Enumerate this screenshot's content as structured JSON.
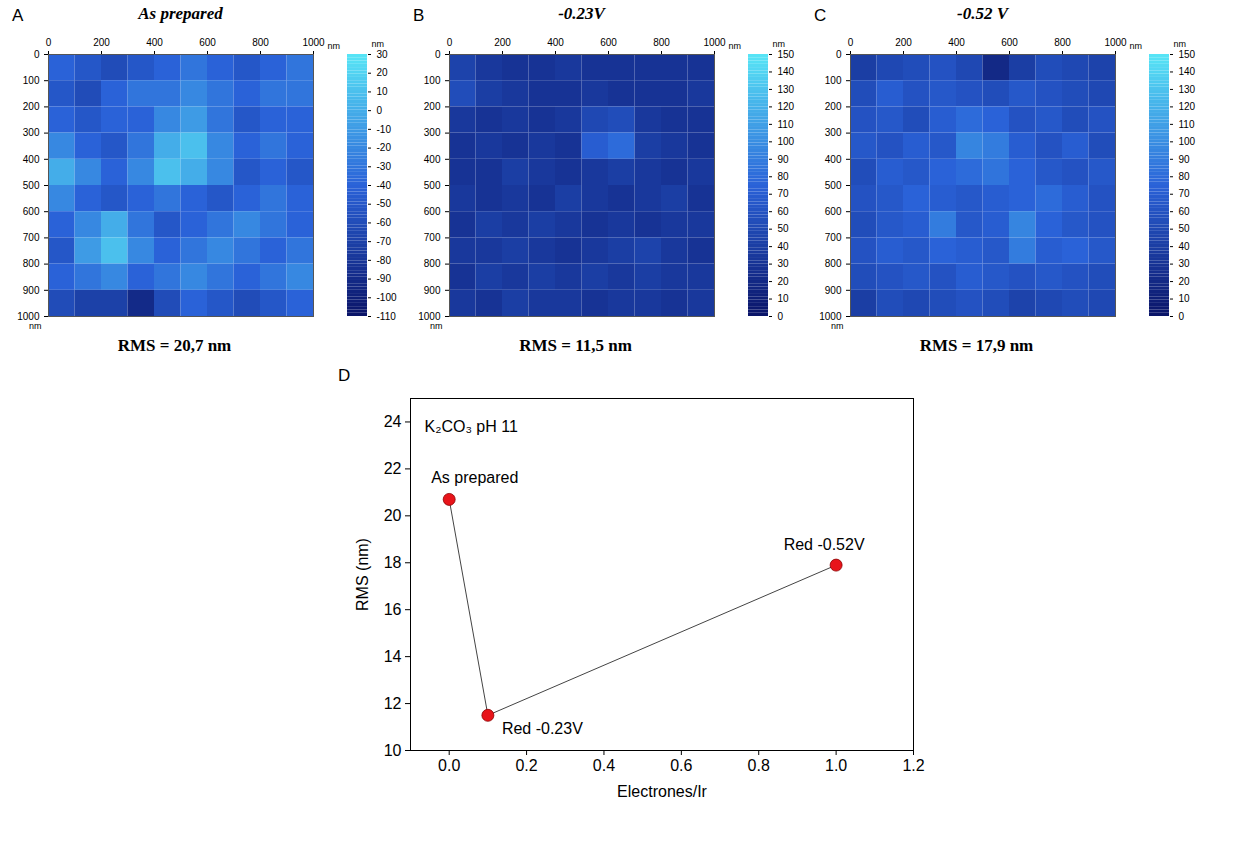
{
  "chart_data": [
    {
      "type": "heatmap",
      "panel": "A",
      "title": "As prepared",
      "annotation": "RMS = 20,7 nm",
      "xlabel": "nm",
      "ylabel": "nm",
      "xlim": [
        0,
        1000
      ],
      "xticks": [
        0,
        200,
        400,
        600,
        800,
        1000
      ],
      "ylim": [
        0,
        1000
      ],
      "yticks": [
        0,
        100,
        200,
        300,
        400,
        500,
        600,
        700,
        800,
        900,
        1000
      ],
      "colorbar": {
        "label": "nm",
        "range": [
          -110,
          30
        ],
        "ticks": [
          30,
          20,
          10,
          0,
          -10,
          -20,
          -30,
          -40,
          -50,
          -60,
          -70,
          -80,
          -90,
          -100,
          -110
        ]
      },
      "cells": [
        [
          -40,
          -50,
          -60,
          -50,
          -40,
          -30,
          -40,
          -50,
          -40,
          -30
        ],
        [
          -50,
          -60,
          -40,
          -30,
          -30,
          -20,
          -30,
          -40,
          -30,
          -30
        ],
        [
          -40,
          -50,
          -40,
          -40,
          -20,
          -10,
          -30,
          -50,
          -40,
          -40
        ],
        [
          -20,
          -40,
          -50,
          -30,
          0,
          10,
          -20,
          -40,
          -30,
          -40
        ],
        [
          0,
          -20,
          -40,
          -20,
          10,
          0,
          -20,
          -50,
          -40,
          -50
        ],
        [
          -20,
          -40,
          -50,
          -40,
          -30,
          -40,
          -50,
          -40,
          -30,
          -40
        ],
        [
          -40,
          -20,
          0,
          -30,
          -50,
          -40,
          -30,
          -20,
          -30,
          -40
        ],
        [
          -50,
          -10,
          10,
          -20,
          -40,
          -30,
          -20,
          -30,
          -40,
          -30
        ],
        [
          -40,
          -30,
          -20,
          -40,
          -30,
          -20,
          -30,
          -40,
          -30,
          -20
        ],
        [
          -60,
          -70,
          -70,
          -90,
          -60,
          -40,
          -50,
          -60,
          -50,
          -40
        ]
      ]
    },
    {
      "type": "heatmap",
      "panel": "B",
      "title": "-0.23V",
      "annotation": "RMS = 11,5 nm",
      "xlabel": "nm",
      "ylabel": "nm",
      "xlim": [
        0,
        1000
      ],
      "xticks": [
        0,
        200,
        400,
        600,
        800,
        1000
      ],
      "ylim": [
        0,
        1000
      ],
      "yticks": [
        0,
        100,
        200,
        300,
        400,
        500,
        600,
        700,
        800,
        900,
        1000
      ],
      "colorbar": {
        "label": "nm",
        "range": [
          0,
          150
        ],
        "ticks": [
          150,
          140,
          130,
          120,
          110,
          100,
          90,
          80,
          70,
          60,
          50,
          40,
          30,
          20,
          10,
          0
        ]
      },
      "cells": [
        [
          45,
          35,
          30,
          30,
          35,
          30,
          30,
          30,
          30,
          30
        ],
        [
          55,
          40,
          35,
          30,
          30,
          35,
          30,
          30,
          30,
          35
        ],
        [
          35,
          30,
          35,
          30,
          35,
          50,
          55,
          35,
          30,
          30
        ],
        [
          30,
          35,
          30,
          35,
          30,
          70,
          80,
          40,
          35,
          30
        ],
        [
          30,
          30,
          40,
          35,
          30,
          35,
          40,
          35,
          30,
          35
        ],
        [
          35,
          30,
          35,
          30,
          40,
          35,
          30,
          35,
          40,
          30
        ],
        [
          30,
          40,
          35,
          40,
          35,
          30,
          35,
          30,
          35,
          35
        ],
        [
          35,
          35,
          40,
          35,
          30,
          35,
          40,
          45,
          35,
          30
        ],
        [
          30,
          40,
          35,
          40,
          35,
          40,
          35,
          40,
          35,
          35
        ],
        [
          35,
          30,
          40,
          35,
          35,
          30,
          35,
          35,
          30,
          35
        ]
      ]
    },
    {
      "type": "heatmap",
      "panel": "C",
      "title": "-0.52 V",
      "annotation": "RMS = 17,9 nm",
      "xlabel": "nm",
      "ylabel": "nm",
      "xlim": [
        0,
        1000
      ],
      "xticks": [
        0,
        200,
        400,
        600,
        800,
        1000
      ],
      "ylim": [
        0,
        1000
      ],
      "yticks": [
        0,
        100,
        200,
        300,
        400,
        500,
        600,
        700,
        800,
        900,
        1000
      ],
      "colorbar": {
        "label": "nm",
        "range": [
          0,
          150
        ],
        "ticks": [
          150,
          140,
          130,
          120,
          110,
          100,
          90,
          80,
          70,
          60,
          50,
          40,
          30,
          20,
          10,
          0
        ]
      },
      "cells": [
        [
          40,
          50,
          55,
          60,
          50,
          20,
          40,
          55,
          50,
          45
        ],
        [
          55,
          70,
          60,
          65,
          60,
          55,
          65,
          60,
          55,
          50
        ],
        [
          60,
          65,
          55,
          70,
          80,
          75,
          60,
          65,
          55,
          60
        ],
        [
          65,
          60,
          70,
          65,
          95,
          90,
          70,
          60,
          70,
          55
        ],
        [
          55,
          70,
          65,
          75,
          80,
          85,
          75,
          65,
          60,
          65
        ],
        [
          60,
          65,
          75,
          70,
          65,
          70,
          75,
          80,
          70,
          60
        ],
        [
          55,
          65,
          70,
          90,
          65,
          70,
          95,
          75,
          65,
          60
        ],
        [
          60,
          70,
          65,
          75,
          70,
          65,
          90,
          70,
          75,
          65
        ],
        [
          55,
          60,
          65,
          60,
          70,
          65,
          60,
          65,
          60,
          55
        ],
        [
          40,
          55,
          50,
          55,
          60,
          55,
          45,
          50,
          55,
          50
        ]
      ]
    },
    {
      "type": "line",
      "panel": "D",
      "annotation": "K₂CO₃ pH 11",
      "xlabel": "Electrones/Ir",
      "ylabel": "RMS (nm)",
      "xlim": [
        -0.1,
        1.2
      ],
      "xticks": [
        {
          "value": 0,
          "label": "0.0"
        },
        {
          "value": 0.2,
          "label": "0.2"
        },
        {
          "value": 0.4,
          "label": "0.4"
        },
        {
          "value": 0.6,
          "label": "0.6"
        },
        {
          "value": 0.8,
          "label": "0.8"
        },
        {
          "value": 1,
          "label": "1.0"
        },
        {
          "value": 1.2,
          "label": "1.2"
        }
      ],
      "ylim": [
        10,
        25
      ],
      "yticks": [
        10,
        12,
        14,
        16,
        18,
        20,
        22,
        24
      ],
      "x": [
        0,
        0.1,
        1.0
      ],
      "series": [
        {
          "values": [
            20.7,
            11.5,
            17.9
          ],
          "labels": [
            "As prepared",
            "Red -0.23V",
            "Red -0.52V"
          ],
          "color": "#e8141a",
          "marker": "circle"
        }
      ]
    }
  ]
}
